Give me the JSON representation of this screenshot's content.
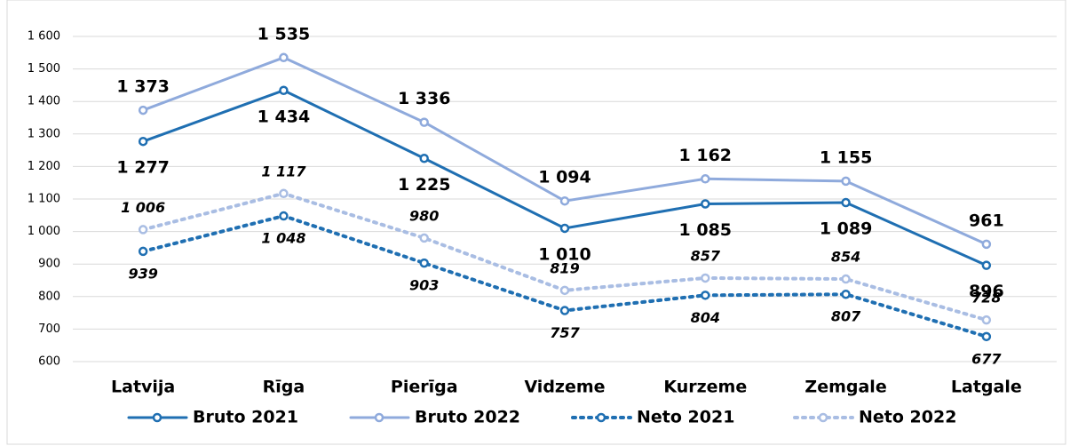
{
  "chart_data": {
    "type": "line",
    "categories": [
      "Latvija",
      "Rīga",
      "Pierīga",
      "Vidzeme",
      "Kurzeme",
      "Zemgale",
      "Latgale"
    ],
    "series": [
      {
        "name": "Bruto 2021",
        "color": "#1f6fb2",
        "dash": false,
        "values": [
          1277,
          1434,
          1225,
          1010,
          1085,
          1089,
          896
        ],
        "value_labels": [
          "1 277",
          "1 434",
          "1 225",
          "1 010",
          "1 085",
          "1 089",
          "896"
        ]
      },
      {
        "name": "Bruto 2022",
        "color": "#8faadc",
        "dash": false,
        "values": [
          1373,
          1535,
          1336,
          1094,
          1162,
          1155,
          961
        ],
        "value_labels": [
          "1 373",
          "1 535",
          "1 336",
          "1 094",
          "1 162",
          "1 155",
          "961"
        ]
      },
      {
        "name": "Neto 2021",
        "color": "#1f6fb2",
        "dash": true,
        "values": [
          939,
          1048,
          903,
          757,
          804,
          807,
          677
        ],
        "value_labels": [
          "939",
          "1 048",
          "903",
          "757",
          "804",
          "807",
          "677"
        ]
      },
      {
        "name": "Neto 2022",
        "color": "#a9bde3",
        "dash": true,
        "values": [
          1006,
          1117,
          980,
          819,
          857,
          854,
          728
        ],
        "value_labels": [
          "1 006",
          "1 117",
          "980",
          "819",
          "857",
          "854",
          "728"
        ]
      }
    ],
    "ylim": [
      600,
      1600
    ],
    "yticks": [
      600,
      700,
      800,
      900,
      {
        "value": 1000,
        "label": "1 000"
      },
      {
        "value": 1100,
        "label": "1 100"
      },
      {
        "value": 1200,
        "label": "1 200"
      },
      {
        "value": 1300,
        "label": "1 300"
      },
      {
        "value": 1400,
        "label": "1 400"
      },
      {
        "value": 1500,
        "label": "1 500"
      },
      {
        "value": 1600,
        "label": "1 600"
      }
    ],
    "grid": true,
    "legend": "bottom"
  }
}
